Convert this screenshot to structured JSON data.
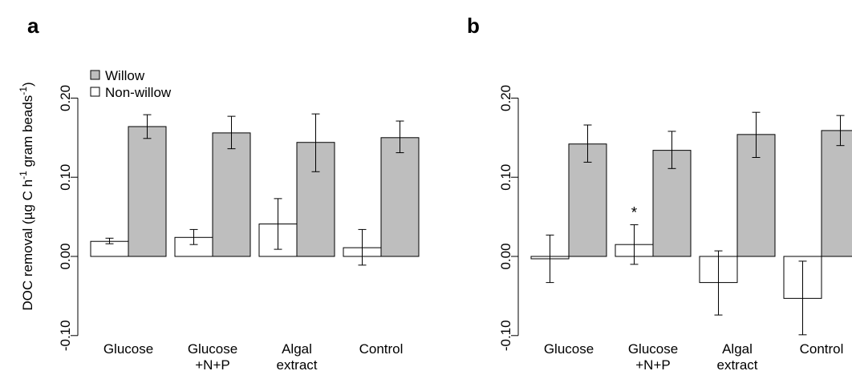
{
  "chart_data": [
    {
      "panel_label": "a",
      "type": "bar",
      "ylabel_main": "DOC removal (µg C h",
      "ylabel_sup1": "-1",
      "ylabel_mid": " gram beads",
      "ylabel_sup2": "-1",
      "ylabel_end": ")",
      "ylim": [
        -0.1,
        0.25
      ],
      "y_ticks": [
        -0.1,
        0.0,
        0.1,
        0.2
      ],
      "y_tick_labels": [
        "-0.10",
        "0.00",
        "0.10",
        "0.20"
      ],
      "categories": [
        [
          "Glucose"
        ],
        [
          "Glucose",
          "+N+P"
        ],
        [
          "Algal",
          "extract"
        ],
        [
          "Control"
        ]
      ],
      "legend": {
        "position": "top-left",
        "entries": [
          {
            "label": "Willow",
            "color": "#bebebe"
          },
          {
            "label": "Non-willow",
            "color": "#ffffff"
          }
        ]
      },
      "series": [
        {
          "name": "Non-willow",
          "color": "#ffffff",
          "values": [
            0.019,
            0.024,
            0.041,
            0.011
          ],
          "err_low": [
            0.016,
            0.015,
            0.009,
            -0.011
          ],
          "err_high": [
            0.023,
            0.034,
            0.073,
            0.034
          ]
        },
        {
          "name": "Willow",
          "color": "#bebebe",
          "values": [
            0.164,
            0.156,
            0.144,
            0.15
          ],
          "err_low": [
            0.149,
            0.136,
            0.107,
            0.131
          ],
          "err_high": [
            0.179,
            0.177,
            0.18,
            0.171
          ]
        }
      ],
      "annotations": []
    },
    {
      "panel_label": "b",
      "type": "bar",
      "ylim": [
        -0.1,
        0.25
      ],
      "y_ticks": [
        -0.1,
        0.0,
        0.1,
        0.2
      ],
      "y_tick_labels": [
        "-0.10",
        "0.00",
        "0.10",
        "0.20"
      ],
      "categories": [
        [
          "Glucose"
        ],
        [
          "Glucose",
          "+N+P"
        ],
        [
          "Algal",
          "extract"
        ],
        [
          "Control"
        ]
      ],
      "series": [
        {
          "name": "Non-willow",
          "color": "#ffffff",
          "values": [
            -0.003,
            0.015,
            -0.033,
            -0.053
          ],
          "err_low": [
            -0.033,
            -0.01,
            -0.074,
            -0.099
          ],
          "err_high": [
            0.027,
            0.04,
            0.007,
            -0.006
          ]
        },
        {
          "name": "Willow",
          "color": "#bebebe",
          "values": [
            0.142,
            0.134,
            0.154,
            0.159
          ],
          "err_low": [
            0.119,
            0.111,
            0.125,
            0.14
          ],
          "err_high": [
            0.166,
            0.158,
            0.182,
            0.178
          ]
        }
      ],
      "annotations": [
        {
          "text": "*",
          "category_index": 1,
          "series": "Non-willow"
        }
      ]
    }
  ]
}
